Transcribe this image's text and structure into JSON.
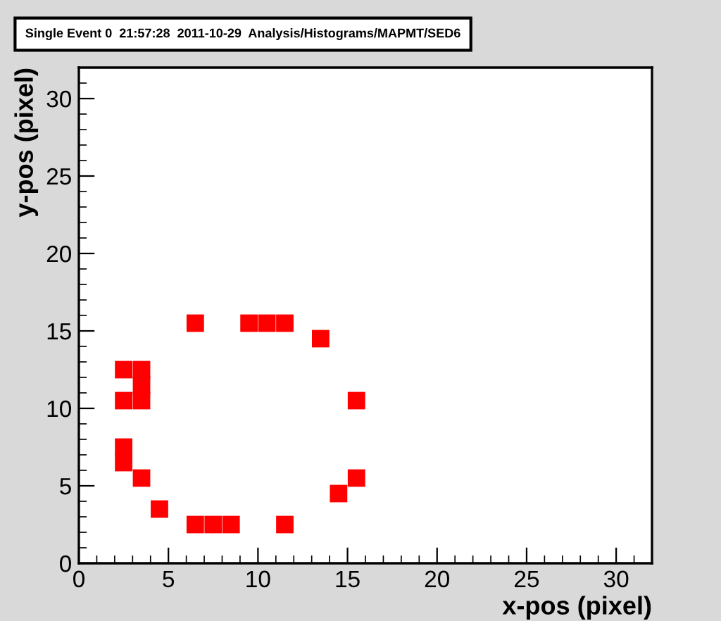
{
  "chart_data": {
    "type": "scatter",
    "title": "Single Event 0  21:57:28  2011-10-29  Analysis/Histograms/MAPMT/SED6",
    "xlabel": "x-pos (pixel)",
    "ylabel": "y-pos (pixel)",
    "x": [
      6.5,
      9.5,
      10.5,
      11.5,
      13.5,
      2.5,
      3.5,
      3.5,
      2.5,
      3.5,
      15.5,
      2.5,
      2.5,
      3.5,
      4.5,
      6.5,
      7.5,
      8.5,
      11.5,
      15.5,
      14.5
    ],
    "values": [
      15.5,
      15.5,
      15.5,
      15.5,
      14.5,
      12.5,
      12.5,
      11.5,
      10.5,
      10.5,
      10.5,
      7.5,
      6.5,
      5.5,
      3.5,
      2.5,
      2.5,
      2.5,
      2.5,
      5.5,
      4.5
    ],
    "color": "#ff0000",
    "marker": "square",
    "xlim": [
      0,
      32
    ],
    "ylim": [
      0,
      32
    ],
    "xticks": [
      0,
      5,
      10,
      15,
      20,
      25,
      30
    ],
    "yticks": [
      0,
      5,
      10,
      15,
      20,
      25,
      30
    ],
    "grid": false,
    "legend": false
  }
}
